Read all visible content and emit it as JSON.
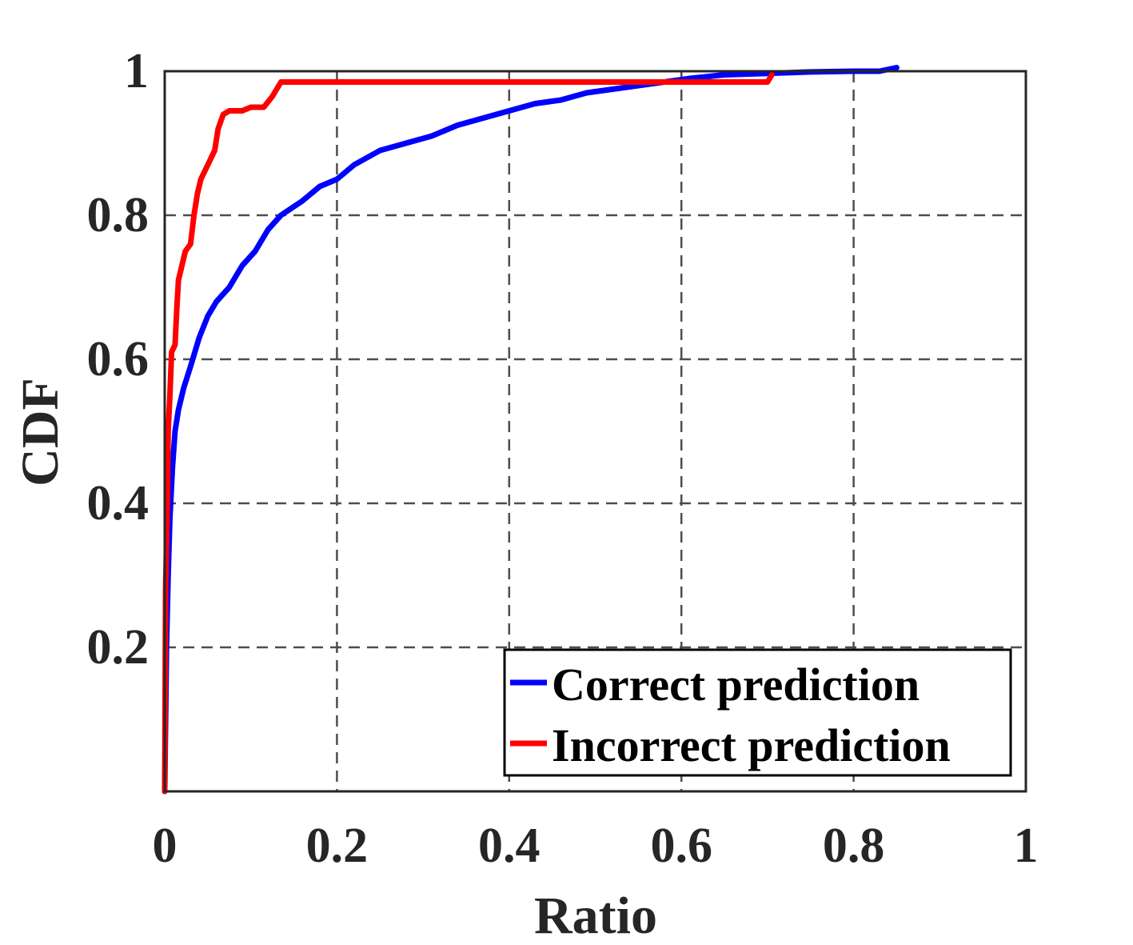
{
  "chart_data": {
    "type": "line",
    "xlabel": "Ratio",
    "ylabel": "CDF",
    "xlim": [
      0,
      1
    ],
    "ylim": [
      0,
      1
    ],
    "x_ticks": [
      "0",
      "0.2",
      "0.4",
      "0.6",
      "0.8",
      "1"
    ],
    "y_ticks": [
      "0.2",
      "0.4",
      "0.6",
      "0.8",
      "1"
    ],
    "grid": true,
    "legend_position": "bottom-right",
    "series": [
      {
        "name": "Correct prediction",
        "color": "#0000ff",
        "points": [
          [
            0.0,
            0.0
          ],
          [
            0.002,
            0.2
          ],
          [
            0.004,
            0.3
          ],
          [
            0.006,
            0.38
          ],
          [
            0.009,
            0.45
          ],
          [
            0.012,
            0.5
          ],
          [
            0.016,
            0.53
          ],
          [
            0.022,
            0.56
          ],
          [
            0.03,
            0.59
          ],
          [
            0.04,
            0.63
          ],
          [
            0.05,
            0.66
          ],
          [
            0.06,
            0.68
          ],
          [
            0.075,
            0.7
          ],
          [
            0.09,
            0.73
          ],
          [
            0.105,
            0.75
          ],
          [
            0.12,
            0.78
          ],
          [
            0.135,
            0.8
          ],
          [
            0.16,
            0.82
          ],
          [
            0.18,
            0.84
          ],
          [
            0.2,
            0.85
          ],
          [
            0.22,
            0.87
          ],
          [
            0.25,
            0.89
          ],
          [
            0.28,
            0.9
          ],
          [
            0.31,
            0.91
          ],
          [
            0.34,
            0.925
          ],
          [
            0.37,
            0.935
          ],
          [
            0.4,
            0.945
          ],
          [
            0.43,
            0.955
          ],
          [
            0.46,
            0.96
          ],
          [
            0.49,
            0.97
          ],
          [
            0.52,
            0.975
          ],
          [
            0.55,
            0.98
          ],
          [
            0.58,
            0.985
          ],
          [
            0.61,
            0.99
          ],
          [
            0.65,
            0.995
          ],
          [
            0.7,
            0.997
          ],
          [
            0.75,
            0.999
          ],
          [
            0.8,
            1.0
          ],
          [
            0.83,
            1.0
          ],
          [
            0.85,
            1.005
          ]
        ]
      },
      {
        "name": "Incorrect prediction",
        "color": "#ff0000",
        "points": [
          [
            0.0,
            0.0
          ],
          [
            0.001,
            0.28
          ],
          [
            0.003,
            0.4
          ],
          [
            0.004,
            0.5
          ],
          [
            0.006,
            0.55
          ],
          [
            0.008,
            0.61
          ],
          [
            0.012,
            0.62
          ],
          [
            0.014,
            0.67
          ],
          [
            0.016,
            0.71
          ],
          [
            0.02,
            0.73
          ],
          [
            0.024,
            0.75
          ],
          [
            0.03,
            0.76
          ],
          [
            0.034,
            0.8
          ],
          [
            0.038,
            0.83
          ],
          [
            0.042,
            0.85
          ],
          [
            0.05,
            0.87
          ],
          [
            0.058,
            0.89
          ],
          [
            0.062,
            0.92
          ],
          [
            0.068,
            0.94
          ],
          [
            0.075,
            0.945
          ],
          [
            0.09,
            0.945
          ],
          [
            0.1,
            0.95
          ],
          [
            0.115,
            0.95
          ],
          [
            0.125,
            0.965
          ],
          [
            0.135,
            0.985
          ],
          [
            0.3,
            0.985
          ],
          [
            0.5,
            0.985
          ],
          [
            0.7,
            0.985
          ],
          [
            0.705,
            0.995
          ]
        ]
      }
    ]
  }
}
